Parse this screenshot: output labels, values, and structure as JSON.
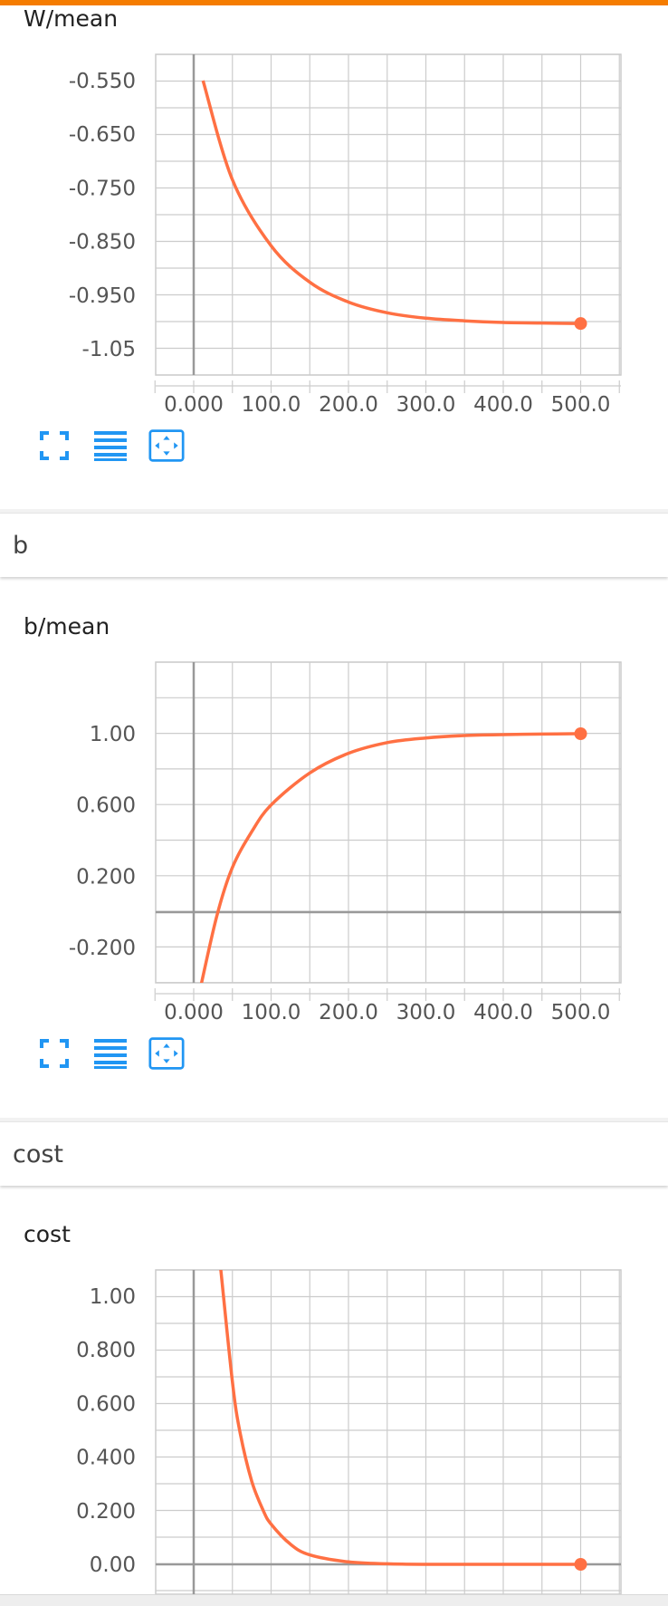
{
  "colors": {
    "accent_bar": "#f57c00",
    "series": "#ff7043",
    "icon": "#2196f3",
    "grid": "#cccccc",
    "zero_axis": "#999999"
  },
  "icons": {
    "expand": "fullscreen-icon",
    "list": "data-list-icon",
    "fit": "fit-domain-icon"
  },
  "sections": {
    "b": "b",
    "cost": "cost"
  },
  "chart_data": [
    {
      "type": "line",
      "title": "W/mean",
      "xlabel": "",
      "ylabel": "",
      "x_ticks": [
        "0.000",
        "100.0",
        "200.0",
        "300.0",
        "400.0",
        "500.0"
      ],
      "y_ticks": [
        "-0.550",
        "-0.650",
        "-0.750",
        "-0.850",
        "-0.950",
        "-1.05"
      ],
      "xlim": [
        -100,
        1100
      ],
      "ylim": [
        -1.1,
        -0.5
      ],
      "grid": true,
      "series": [
        {
          "x": [
            12,
            50,
            100,
            150,
            200,
            250,
            300,
            350,
            400,
            450,
            500
          ],
          "y": [
            -0.55,
            -0.735,
            -0.858,
            -0.926,
            -0.963,
            -0.983,
            -0.993,
            -0.998,
            -1.001,
            -1.002,
            -1.003
          ],
          "endpoint": [
            500,
            -1.003
          ]
        }
      ]
    },
    {
      "type": "line",
      "title": "b/mean",
      "xlabel": "",
      "ylabel": "",
      "x_ticks": [
        "0.000",
        "100.0",
        "200.0",
        "300.0",
        "400.0",
        "500.0"
      ],
      "y_ticks": [
        "1.00",
        "0.600",
        "0.200",
        "-0.200"
      ],
      "xlim": [
        -100,
        1100
      ],
      "ylim": [
        -0.4,
        1.4
      ],
      "grid": true,
      "series": [
        {
          "x": [
            10,
            30,
            50,
            75,
            100,
            150,
            200,
            250,
            300,
            350,
            400,
            450,
            500
          ],
          "y": [
            -0.4,
            -0.02,
            0.25,
            0.45,
            0.6,
            0.78,
            0.89,
            0.95,
            0.976,
            0.99,
            0.995,
            0.998,
            1.0
          ],
          "endpoint": [
            500,
            1.0
          ]
        }
      ]
    },
    {
      "type": "line",
      "title": "cost",
      "xlabel": "",
      "ylabel": "",
      "x_ticks": [],
      "y_ticks": [
        "1.00",
        "0.800",
        "0.600",
        "0.400",
        "0.200",
        "0.00"
      ],
      "xlim": [
        -100,
        1100
      ],
      "ylim": [
        -0.05,
        1.1
      ],
      "grid": true,
      "series": [
        {
          "x": [
            35,
            50,
            60,
            75,
            90,
            100,
            125,
            150,
            200,
            250,
            300,
            400,
            500
          ],
          "y": [
            1.1,
            0.68,
            0.49,
            0.31,
            0.2,
            0.15,
            0.075,
            0.035,
            0.009,
            0.002,
            0.0,
            0.0,
            0.0
          ],
          "endpoint": [
            500,
            0.0
          ]
        }
      ]
    }
  ]
}
